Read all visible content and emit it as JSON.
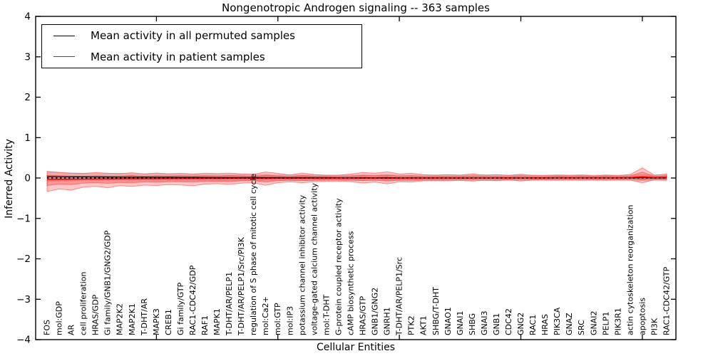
{
  "figure": {
    "title": "Nongenotropic Androgen signaling -- 363 samples",
    "xlabel": "Cellular Entities",
    "ylabel": "Inferred Activity"
  },
  "legend": {
    "entries": [
      {
        "label": "Mean activity in all permuted samples",
        "color": "#000000"
      },
      {
        "label": "Mean activity in patient samples",
        "color": "#ff0000"
      }
    ]
  },
  "colors": {
    "permuted_line": "#000000",
    "patient_line": "#ff0000",
    "zero_line": "#000000",
    "permuted_band": "rgba(0,0,0,0.12)",
    "patient_band_fill": "rgba(255,0,0,0.22)",
    "patient_band_edge": "rgba(255,0,0,0.40)",
    "axis": "#000000"
  },
  "chart_data": {
    "type": "line",
    "title": "Nongenotropic Androgen signaling -- 363 samples",
    "xlabel": "Cellular Entities",
    "ylabel": "Inferred Activity",
    "ylim": [
      -4,
      4
    ],
    "yticks": [
      -4,
      -3,
      -2,
      -1,
      0,
      1,
      2,
      3,
      4
    ],
    "ytick_labels": [
      "−4",
      "−3",
      "−2",
      "−1",
      "0",
      "1",
      "2",
      "3",
      "4"
    ],
    "xtick_indices": [
      9,
      19,
      29,
      39,
      49
    ],
    "grid": false,
    "legend_position": "upper left",
    "categories": [
      "FOS",
      "mol:GDP",
      "AR",
      "cell proliferation",
      "HRAS/GDP",
      "Gi family/GNB1/GNG2/GDP",
      "MAP2K2",
      "MAP2K1",
      "T-DHT/AR",
      "MAPK3",
      "CREB1",
      "Gi family/GTP",
      "RAC1-CDC42/GDP",
      "RAF1",
      "MAPK1",
      "T-DHT/AR/PELP1",
      "T-DHT/AR/PELP1/Src/PI3K",
      "regulation of S phase of mitotic cell cycle",
      "mol:Ca2+",
      "mol:GTP",
      "mol:IP3",
      "potassium channel inhibitor activity",
      "voltage-gated calcium channel activity",
      "mol:T-DHT",
      "G-protein coupled receptor activity",
      "cAMP biosynthetic process",
      "HRAS/GTP",
      "GNB1/GNG2",
      "GNRH1",
      "T-DHT/AR/PELP1/Src",
      "PTK2",
      "AKT1",
      "SHBG/T-DHT",
      "GNAO1",
      "GNAI1",
      "SHBG",
      "GNAI3",
      "GNB1",
      "CDC42",
      "GNG2",
      "RAC1",
      "HRAS",
      "PIK3CA",
      "GNAZ",
      "SRC",
      "GNAI2",
      "PELP1",
      "PIK3R1",
      "actin cytoskeleton reorganization",
      "apoptosis",
      "PI3K",
      "RAC1-CDC42/GTP"
    ],
    "series": [
      {
        "name": "Mean activity in all permuted samples",
        "color": "#000000",
        "style": "solid",
        "values": [
          0.035,
          0.032,
          0.03,
          0.028,
          0.026,
          0.024,
          0.022,
          0.02,
          0.019,
          0.018,
          0.017,
          0.016,
          0.015,
          0.014,
          0.013,
          0.012,
          0.012,
          0.011,
          0.013,
          0.01,
          0.009,
          0.01,
          0.008,
          0.008,
          0.007,
          0.007,
          0.008,
          0.007,
          0.009,
          0.006,
          0.007,
          0.005,
          0.005,
          0.005,
          0.004,
          0.005,
          0.004,
          0.004,
          0.004,
          0.004,
          0.003,
          0.003,
          0.003,
          0.003,
          0.003,
          0.003,
          0.003,
          0.003,
          0.003,
          0.005,
          0.003,
          0.003
        ]
      },
      {
        "name": "Mean activity in patient samples",
        "color": "#ff0000",
        "style": "solid",
        "values": [
          -0.035,
          -0.032,
          -0.03,
          -0.027,
          -0.025,
          -0.023,
          -0.021,
          -0.019,
          -0.017,
          -0.016,
          -0.014,
          -0.013,
          -0.012,
          -0.011,
          -0.01,
          -0.009,
          -0.008,
          -0.007,
          -0.01,
          -0.006,
          -0.005,
          -0.006,
          -0.004,
          -0.003,
          -0.002,
          -0.001,
          -0.003,
          -0.002,
          -0.005,
          -0.001,
          -0.002,
          0.001,
          0.001,
          0.002,
          0.002,
          0.003,
          0.003,
          0.003,
          0.004,
          0.004,
          0.004,
          0.004,
          0.005,
          0.005,
          0.005,
          0.005,
          0.006,
          0.006,
          0.01,
          0.03,
          0.01,
          0.018
        ]
      },
      {
        "name": "zero reference",
        "color": "#000000",
        "style": "dotted",
        "values": [
          0,
          0,
          0,
          0,
          0,
          0,
          0,
          0,
          0,
          0,
          0,
          0,
          0,
          0,
          0,
          0,
          0,
          0,
          0,
          0,
          0,
          0,
          0,
          0,
          0,
          0,
          0,
          0,
          0,
          0,
          0,
          0,
          0,
          0,
          0,
          0,
          0,
          0,
          0,
          0,
          0,
          0,
          0,
          0,
          0,
          0,
          0,
          0,
          0,
          0,
          0,
          0
        ]
      }
    ],
    "bands": [
      {
        "name": "permuted range",
        "center_series": 0,
        "fill": "rgba(0,0,0,0.12)",
        "edge": "none",
        "upper_offset": [
          0.13,
          0.12,
          0.11,
          0.1,
          0.1,
          0.1,
          0.1,
          0.1,
          0.09,
          0.1,
          0.09,
          0.09,
          0.09,
          0.09,
          0.09,
          0.09,
          0.09,
          0.08,
          0.09,
          0.08,
          0.08,
          0.08,
          0.08,
          0.08,
          0.08,
          0.08,
          0.08,
          0.08,
          0.08,
          0.08,
          0.08,
          0.08,
          0.08,
          0.08,
          0.08,
          0.08,
          0.08,
          0.08,
          0.08,
          0.08,
          0.08,
          0.08,
          0.08,
          0.08,
          0.08,
          0.08,
          0.08,
          0.08,
          0.08,
          0.09,
          0.08,
          0.09
        ],
        "lower_offset": [
          0.13,
          0.12,
          0.11,
          0.1,
          0.1,
          0.1,
          0.1,
          0.1,
          0.09,
          0.1,
          0.09,
          0.09,
          0.09,
          0.09,
          0.09,
          0.09,
          0.09,
          0.08,
          0.09,
          0.08,
          0.08,
          0.08,
          0.08,
          0.08,
          0.08,
          0.08,
          0.08,
          0.08,
          0.08,
          0.08,
          0.08,
          0.08,
          0.08,
          0.08,
          0.08,
          0.08,
          0.08,
          0.08,
          0.08,
          0.08,
          0.08,
          0.08,
          0.08,
          0.08,
          0.08,
          0.08,
          0.08,
          0.08,
          0.08,
          0.09,
          0.08,
          0.09
        ]
      },
      {
        "name": "patient range outer",
        "center_series": 1,
        "fill": "rgba(255,0,0,0.22)",
        "edge": "rgba(255,0,0,0.40)",
        "upper_offset": [
          0.2,
          0.17,
          0.15,
          0.14,
          0.16,
          0.14,
          0.13,
          0.15,
          0.12,
          0.14,
          0.12,
          0.13,
          0.11,
          0.13,
          0.12,
          0.13,
          0.11,
          0.1,
          0.16,
          0.12,
          0.08,
          0.13,
          0.09,
          0.07,
          0.07,
          0.1,
          0.14,
          0.12,
          0.16,
          0.1,
          0.12,
          0.08,
          0.07,
          0.08,
          0.07,
          0.1,
          0.07,
          0.08,
          0.06,
          0.09,
          0.06,
          0.06,
          0.07,
          0.06,
          0.07,
          0.05,
          0.07,
          0.05,
          0.08,
          0.22,
          0.06,
          0.08
        ],
        "lower_offset": [
          0.3,
          0.24,
          0.27,
          0.2,
          0.18,
          0.22,
          0.17,
          0.19,
          0.16,
          0.17,
          0.15,
          0.16,
          0.18,
          0.14,
          0.13,
          0.15,
          0.12,
          0.11,
          0.17,
          0.11,
          0.09,
          0.11,
          0.09,
          0.08,
          0.08,
          0.09,
          0.12,
          0.1,
          0.14,
          0.09,
          0.1,
          0.07,
          0.07,
          0.07,
          0.06,
          0.08,
          0.06,
          0.07,
          0.05,
          0.08,
          0.05,
          0.05,
          0.06,
          0.05,
          0.06,
          0.05,
          0.06,
          0.05,
          0.06,
          0.15,
          0.05,
          0.07
        ]
      },
      {
        "name": "patient range inner",
        "center_series": 1,
        "fill": "rgba(255,0,0,0.25)",
        "edge": "rgba(255,0,0,0.35)",
        "upper_offset": [
          0.1,
          0.09,
          0.08,
          0.07,
          0.08,
          0.07,
          0.07,
          0.08,
          0.06,
          0.07,
          0.06,
          0.07,
          0.06,
          0.07,
          0.06,
          0.07,
          0.06,
          0.05,
          0.08,
          0.06,
          0.04,
          0.07,
          0.05,
          0.04,
          0.04,
          0.05,
          0.07,
          0.06,
          0.08,
          0.05,
          0.06,
          0.04,
          0.04,
          0.04,
          0.04,
          0.05,
          0.04,
          0.04,
          0.03,
          0.05,
          0.03,
          0.03,
          0.04,
          0.03,
          0.04,
          0.03,
          0.04,
          0.03,
          0.04,
          0.12,
          0.03,
          0.04
        ],
        "lower_offset": [
          0.15,
          0.12,
          0.13,
          0.1,
          0.09,
          0.11,
          0.09,
          0.1,
          0.08,
          0.09,
          0.08,
          0.08,
          0.09,
          0.07,
          0.07,
          0.08,
          0.06,
          0.06,
          0.09,
          0.06,
          0.05,
          0.06,
          0.05,
          0.04,
          0.04,
          0.05,
          0.06,
          0.05,
          0.07,
          0.05,
          0.05,
          0.04,
          0.04,
          0.04,
          0.03,
          0.04,
          0.03,
          0.04,
          0.03,
          0.04,
          0.03,
          0.03,
          0.03,
          0.03,
          0.03,
          0.03,
          0.03,
          0.03,
          0.03,
          0.08,
          0.03,
          0.04
        ]
      }
    ]
  }
}
